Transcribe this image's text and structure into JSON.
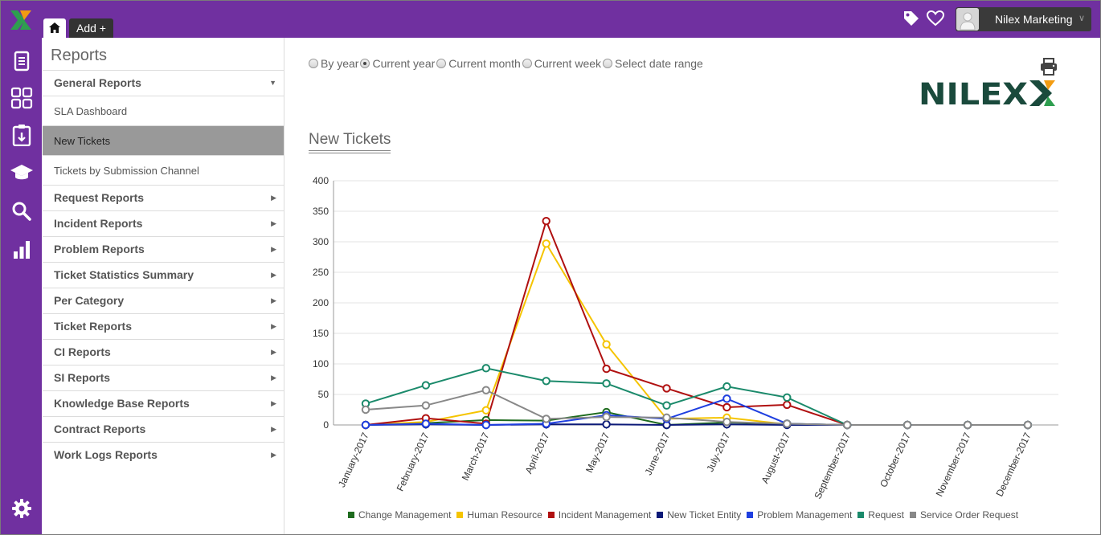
{
  "topbar": {
    "add_tab_label": "Add +",
    "user_name": "Nilex Marketing",
    "user_caret": "∨"
  },
  "rail": {
    "icons": [
      "document-icon",
      "dashboard-grid-icon",
      "clipboard-icon",
      "graduation-cap-icon",
      "search-icon",
      "bar-chart-icon",
      "gear-icon"
    ]
  },
  "sidebar": {
    "title": "Reports",
    "items": [
      {
        "label": "General Reports",
        "type": "group",
        "caret": "▼"
      },
      {
        "label": "SLA Dashboard",
        "type": "sub"
      },
      {
        "label": "New Tickets",
        "type": "sub",
        "active": true
      },
      {
        "label": "Tickets by Submission Channel",
        "type": "sub"
      },
      {
        "label": "Request Reports",
        "type": "group",
        "caret": "▶"
      },
      {
        "label": "Incident Reports",
        "type": "group",
        "caret": "▶"
      },
      {
        "label": "Problem Reports",
        "type": "group",
        "caret": "▶"
      },
      {
        "label": "Ticket Statistics Summary",
        "type": "group",
        "caret": "▶"
      },
      {
        "label": "Per Category",
        "type": "group",
        "caret": "▶"
      },
      {
        "label": "Ticket Reports",
        "type": "group",
        "caret": "▶"
      },
      {
        "label": "CI Reports",
        "type": "group",
        "caret": "▶"
      },
      {
        "label": "SI Reports",
        "type": "group",
        "caret": "▶"
      },
      {
        "label": "Knowledge Base Reports",
        "type": "group",
        "caret": "▶"
      },
      {
        "label": "Contract Reports",
        "type": "group",
        "caret": "▶"
      },
      {
        "label": "Work Logs Reports",
        "type": "group",
        "caret": "▶"
      }
    ]
  },
  "main": {
    "date_options": [
      {
        "label": "By year",
        "checked": false
      },
      {
        "label": "Current year",
        "checked": true
      },
      {
        "label": "Current month",
        "checked": false
      },
      {
        "label": "Current week",
        "checked": false
      },
      {
        "label": "Select date range",
        "checked": false
      }
    ],
    "logo_text": "NILEX",
    "chart_title": "New Tickets"
  },
  "colors": {
    "brand_purple": "#7030a0",
    "logo_dark": "#1a4a3c",
    "logo_x_orange": "#f39c12",
    "logo_x_green": "#2e9e4f"
  },
  "chart_data": {
    "type": "line",
    "title": "New Tickets",
    "categories": [
      "January-2017",
      "February-2017",
      "March-2017",
      "April-2017",
      "May-2017",
      "June-2017",
      "July-2017",
      "August-2017",
      "September-2017",
      "October-2017",
      "November-2017",
      "December-2017"
    ],
    "ylim": [
      0,
      400
    ],
    "yticks": [
      0,
      50,
      100,
      150,
      200,
      250,
      300,
      350,
      400
    ],
    "grid": true,
    "legend": "bottom",
    "series": [
      {
        "name": "Change Management",
        "color": "#1e6b1e",
        "values": [
          0,
          3,
          8,
          7,
          21,
          0,
          4,
          2,
          0,
          0,
          0,
          0
        ]
      },
      {
        "name": "Human Resource",
        "color": "#f5c400",
        "values": [
          0,
          5,
          24,
          297,
          132,
          10,
          12,
          1,
          0,
          0,
          0,
          0
        ]
      },
      {
        "name": "Incident Management",
        "color": "#b01010",
        "values": [
          0,
          11,
          2,
          334,
          92,
          60,
          29,
          33,
          0,
          0,
          0,
          0
        ]
      },
      {
        "name": "New Ticket Entity",
        "color": "#0c1a78",
        "values": [
          0,
          1,
          0,
          1,
          1,
          0,
          1,
          0,
          0,
          0,
          0,
          0
        ]
      },
      {
        "name": "Problem Management",
        "color": "#1f3fe0",
        "values": [
          0,
          2,
          0,
          2,
          16,
          10,
          43,
          2,
          0,
          0,
          0,
          0
        ]
      },
      {
        "name": "Request",
        "color": "#1b8a6b",
        "values": [
          35,
          65,
          93,
          72,
          68,
          32,
          63,
          45,
          0,
          0,
          0,
          0
        ]
      },
      {
        "name": "Service Order Request",
        "color": "#888888",
        "values": [
          25,
          32,
          57,
          10,
          13,
          12,
          5,
          2,
          0,
          0,
          0,
          0
        ]
      }
    ]
  }
}
